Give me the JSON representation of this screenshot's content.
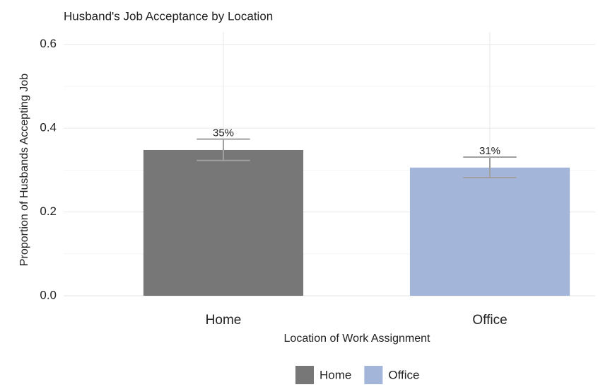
{
  "chart_data": {
    "type": "bar",
    "title": "Husband's Job Acceptance by Location",
    "x_label": "Location of Work Assignment",
    "y_label": "Proportion of Husbands Accepting Job",
    "categories": [
      "Home",
      "Office"
    ],
    "values": [
      0.348,
      0.306
    ],
    "value_labels": [
      "35%",
      "31%"
    ],
    "error_low": [
      0.323,
      0.282
    ],
    "error_high": [
      0.374,
      0.331
    ],
    "colors": [
      "#777777",
      "#a3b6d9"
    ],
    "error_color": "#a0a0a0",
    "ylim": [
      0,
      0.63
    ],
    "yticks": [
      {
        "value": 0,
        "label": "0.0"
      },
      0.2,
      0.4,
      0.6
    ],
    "minor_yticks": [
      0.1,
      0.3,
      0.5
    ],
    "grid": true,
    "legend": "bottom"
  }
}
